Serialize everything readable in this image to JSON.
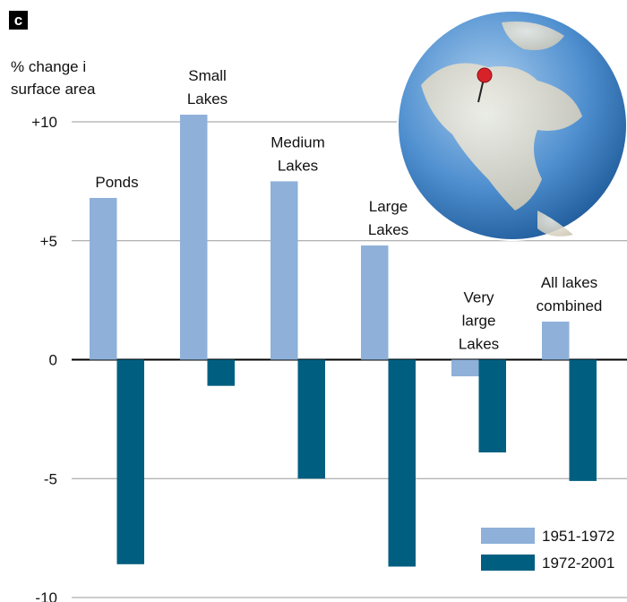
{
  "chart_data": {
    "type": "bar",
    "panel_label": "c",
    "ylabel": [
      "% change i",
      "surface area"
    ],
    "categories": [
      [
        "Ponds"
      ],
      [
        "Small",
        "Lakes"
      ],
      [
        "Medium",
        "Lakes"
      ],
      [
        "Large",
        "Lakes"
      ],
      [
        "Very",
        "large",
        "Lakes"
      ],
      [
        "All lakes",
        "combined"
      ]
    ],
    "series": [
      {
        "name": "1951-1972",
        "color": "#8eb0d9",
        "values": [
          6.8,
          10.3,
          7.5,
          4.8,
          -0.7,
          1.6
        ]
      },
      {
        "name": "1972-2001",
        "color": "#005f80",
        "values": [
          -8.6,
          -1.1,
          -5.0,
          -8.7,
          -3.9,
          -5.1
        ]
      }
    ],
    "ylim": [
      -10,
      10
    ],
    "yticks": [
      {
        "value": 10,
        "label": "+10"
      },
      {
        "value": 5,
        "label": "+5"
      },
      0,
      -5,
      -10
    ],
    "grid": true,
    "legend": "lower right"
  }
}
